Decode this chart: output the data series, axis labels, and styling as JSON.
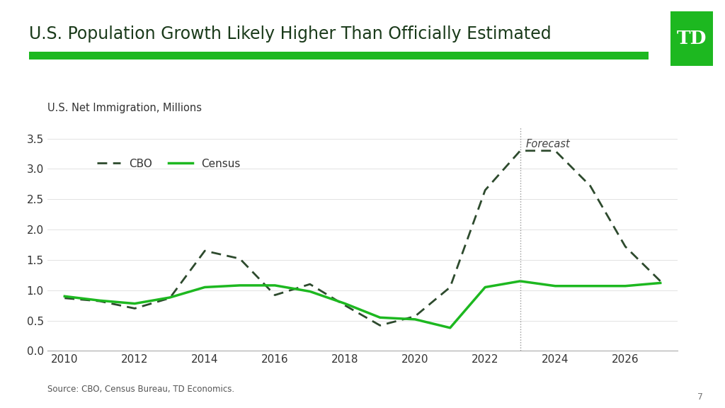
{
  "title": "U.S. Population Growth Likely Higher Than Officially Estimated",
  "ylabel": "U.S. Net Immigration, Millions",
  "source": "Source: CBO, Census Bureau, TD Economics.",
  "page_number": "7",
  "forecast_year": 2023,
  "forecast_label": "Forecast",
  "ylim": [
    0.0,
    3.7
  ],
  "yticks": [
    0.0,
    0.5,
    1.0,
    1.5,
    2.0,
    2.5,
    3.0,
    3.5
  ],
  "xlim": [
    2009.5,
    2027.5
  ],
  "xticks": [
    2010,
    2012,
    2014,
    2016,
    2018,
    2020,
    2022,
    2024,
    2026
  ],
  "cbo_years": [
    2010,
    2011,
    2012,
    2013,
    2014,
    2015,
    2016,
    2017,
    2018,
    2019,
    2020,
    2021,
    2022,
    2023,
    2024,
    2025,
    2026,
    2027
  ],
  "cbo_values": [
    0.87,
    0.82,
    0.7,
    0.87,
    1.65,
    1.52,
    0.92,
    1.1,
    0.75,
    0.42,
    0.57,
    1.05,
    2.65,
    3.3,
    3.3,
    2.72,
    1.72,
    1.15
  ],
  "census_years": [
    2010,
    2011,
    2012,
    2013,
    2014,
    2015,
    2016,
    2017,
    2018,
    2019,
    2020,
    2021,
    2022,
    2023,
    2024,
    2025,
    2026,
    2027
  ],
  "census_values": [
    0.9,
    0.83,
    0.78,
    0.88,
    1.05,
    1.08,
    1.08,
    0.98,
    0.78,
    0.55,
    0.52,
    0.38,
    1.05,
    1.15,
    1.07,
    1.07,
    1.07,
    1.12
  ],
  "cbo_color": "#2d4a2d",
  "census_color": "#1db820",
  "title_color": "#1a3a1a",
  "bg_color": "#ffffff",
  "title_bar_color": "#1db820",
  "td_box_color": "#1db820",
  "td_text_color": "#ffffff",
  "title_fontsize": 17,
  "axis_label_fontsize": 10.5,
  "tick_fontsize": 11,
  "source_fontsize": 8.5,
  "legend_fontsize": 11
}
